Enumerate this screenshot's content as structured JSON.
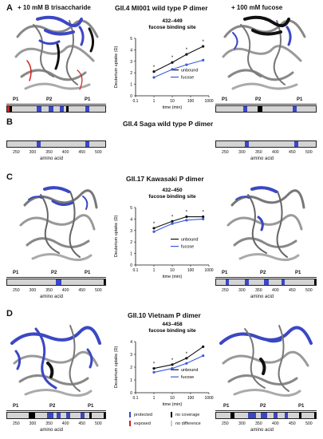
{
  "panels": {
    "A": {
      "letter": "A",
      "title": "GII.4 MI001 wild type P dimer",
      "left_condition": "+ 10 mM B trisaccharide",
      "right_condition": "+ 100 mM fucose",
      "domains": [
        "P1",
        "P2",
        "P1"
      ],
      "chart_title": "432–449",
      "chart_subtitle": "fucose binding site"
    },
    "B": {
      "letter": "B",
      "title": "GII.4 Saga wild type P dimer",
      "ticks": [
        "250",
        "300",
        "350",
        "400",
        "450",
        "500"
      ],
      "axis_label": "amino acid"
    },
    "C": {
      "letter": "C",
      "title": "GII.17 Kawasaki P dimer",
      "domains": [
        "P1",
        "P2",
        "P1"
      ],
      "chart_title": "432–450",
      "chart_subtitle": "fucose binding site",
      "ticks": [
        "250",
        "300",
        "350",
        "400",
        "450",
        "500"
      ],
      "axis_label": "amino acid"
    },
    "D": {
      "letter": "D",
      "title": "GII.10 Vietnam P dimer",
      "domains": [
        "P1",
        "P2",
        "P1"
      ],
      "chart_title": "443–458",
      "chart_subtitle": "fucose binding site",
      "ticks": [
        "250",
        "300",
        "350",
        "400",
        "450",
        "500"
      ],
      "axis_label": "amino acid"
    }
  },
  "legend": {
    "protected": "protected",
    "exposed": "exposed",
    "no_coverage": "no coverage",
    "no_difference": "no difference",
    "colors": {
      "protected": "#3b47c4",
      "exposed": "#d42020",
      "no_coverage": "#000000",
      "no_difference": "#cccccc"
    }
  },
  "chart_data": [
    {
      "type": "line",
      "panel": "A",
      "title": "432–449",
      "subtitle": "fucose binding site",
      "xlabel": "time (min)",
      "ylabel": "Deuterium uptake (D)",
      "xscale": "log",
      "xlim": [
        0.1,
        1000
      ],
      "ylim": [
        0,
        5
      ],
      "xticks": [
        "0.1",
        "1",
        "10",
        "100",
        "1000"
      ],
      "yticks": [
        "0",
        "1",
        "2",
        "3",
        "4",
        "5"
      ],
      "x": [
        1,
        10,
        60,
        480
      ],
      "series": [
        {
          "name": "unbound",
          "values": [
            2.1,
            2.9,
            3.6,
            4.3
          ],
          "color": "#111111"
        },
        {
          "name": "fucose",
          "values": [
            1.6,
            2.3,
            2.7,
            3.1
          ],
          "color": "#3b5bdb"
        }
      ],
      "annotations": [
        "*",
        "*",
        "*",
        "*"
      ],
      "legend": "center-right"
    },
    {
      "type": "line",
      "panel": "C",
      "title": "432–450",
      "subtitle": "fucose binding site",
      "xlabel": "time (min)",
      "ylabel": "Deuterium uptake (D)",
      "xscale": "log",
      "xlim": [
        0.1,
        1000
      ],
      "ylim": [
        0,
        5
      ],
      "xticks": [
        "0.1",
        "1",
        "10",
        "100",
        "1000"
      ],
      "yticks": [
        "0",
        "1",
        "2",
        "3",
        "4",
        "5"
      ],
      "x": [
        1,
        10,
        60,
        480
      ],
      "series": [
        {
          "name": "unbound",
          "values": [
            3.2,
            3.8,
            4.2,
            4.2
          ],
          "color": "#111111"
        },
        {
          "name": "fucose",
          "values": [
            2.9,
            3.6,
            3.9,
            4.0
          ],
          "color": "#3b5bdb"
        }
      ],
      "annotations": [
        "*",
        "*",
        "*",
        "*"
      ],
      "legend": "center-right"
    },
    {
      "type": "line",
      "panel": "D",
      "title": "443–458",
      "subtitle": "fucose binding site",
      "xlabel": "time (min)",
      "ylabel": "Deuterium uptake (D)",
      "xscale": "log",
      "xlim": [
        0.1,
        1000
      ],
      "ylim": [
        0,
        4
      ],
      "xticks": [
        "0.1",
        "1",
        "10",
        "100",
        "1000"
      ],
      "yticks": [
        "0",
        "1",
        "2",
        "3",
        "4"
      ],
      "x": [
        1,
        10,
        60,
        480
      ],
      "series": [
        {
          "name": "unbound",
          "values": [
            1.9,
            2.2,
            2.7,
            3.6
          ],
          "color": "#111111"
        },
        {
          "name": "fucose",
          "values": [
            1.6,
            1.9,
            2.3,
            2.9
          ],
          "color": "#3b5bdb"
        }
      ],
      "annotations": [
        "*",
        "*",
        "*"
      ],
      "legend": "center-right"
    }
  ]
}
